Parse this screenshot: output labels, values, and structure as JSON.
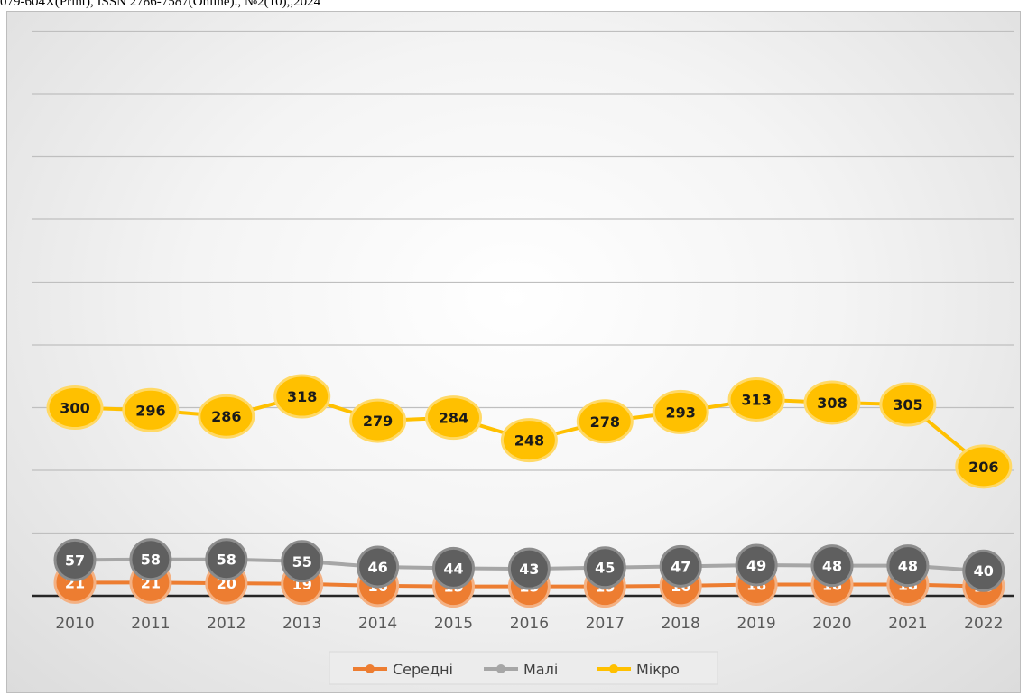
{
  "header": {
    "text": "079-604X(Print), ISSN 2786-7587(Online)., №2(10),,2024"
  },
  "colors": {
    "mikro": "#FFC000",
    "mali": "#5F5F5F",
    "maliLine": "#A6A6A6",
    "seredni": "#ED7D31",
    "gridline": "#bfbfbf",
    "axis": "#262626"
  },
  "chart_data": {
    "type": "line",
    "categories": [
      "2010",
      "2011",
      "2012",
      "2013",
      "2014",
      "2015",
      "2016",
      "2017",
      "2018",
      "2019",
      "2020",
      "2021",
      "2022"
    ],
    "series": [
      {
        "name": "Середні",
        "values": [
          21,
          21,
          20,
          19,
          16,
          15,
          15,
          15,
          16,
          18,
          18,
          18,
          15
        ]
      },
      {
        "name": "Малі",
        "values": [
          57,
          58,
          58,
          55,
          46,
          44,
          43,
          45,
          47,
          49,
          48,
          48,
          40
        ]
      },
      {
        "name": "Мікро",
        "values": [
          300,
          296,
          286,
          318,
          279,
          284,
          248,
          278,
          293,
          313,
          308,
          305,
          206
        ]
      }
    ],
    "legend_position": "bottom",
    "grid": true
  }
}
